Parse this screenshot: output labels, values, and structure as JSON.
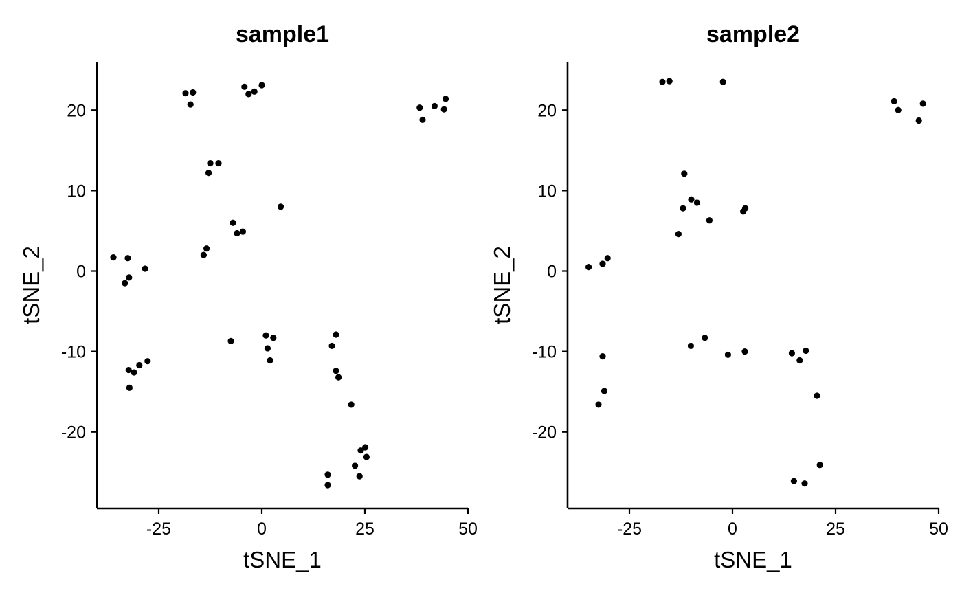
{
  "chart_data": [
    {
      "type": "scatter",
      "title": "sample1",
      "xlabel": "tSNE_1",
      "ylabel": "tSNE_2",
      "xlim": [
        -40,
        50
      ],
      "ylim": [
        -29.5,
        26
      ],
      "xticks": [
        -25,
        0,
        25,
        50
      ],
      "yticks": [
        -20,
        -10,
        0,
        10,
        20
      ],
      "grid": false,
      "color": "#000000",
      "points": [
        [
          -36,
          1.7
        ],
        [
          -32.5,
          1.6
        ],
        [
          -32.2,
          -0.8
        ],
        [
          -33.2,
          -1.5
        ],
        [
          -28.3,
          0.3
        ],
        [
          -32.3,
          -12.3
        ],
        [
          -31,
          -12.6
        ],
        [
          -29.7,
          -11.7
        ],
        [
          -27.7,
          -11.2
        ],
        [
          -32.1,
          -14.5
        ],
        [
          -18.5,
          22.1
        ],
        [
          -16.7,
          22.2
        ],
        [
          -17.3,
          20.7
        ],
        [
          -4.2,
          22.9
        ],
        [
          -3.2,
          22
        ],
        [
          -1.8,
          22.3
        ],
        [
          0,
          23.1
        ],
        [
          -12.5,
          13.4
        ],
        [
          -10.5,
          13.4
        ],
        [
          -12.9,
          12.2
        ],
        [
          -13.4,
          2.8
        ],
        [
          -14.1,
          2
        ],
        [
          -7,
          6
        ],
        [
          -6,
          4.7
        ],
        [
          -4.6,
          4.9
        ],
        [
          4.6,
          8
        ],
        [
          -7.5,
          -8.7
        ],
        [
          1,
          -8
        ],
        [
          2.8,
          -8.3
        ],
        [
          1.4,
          -9.6
        ],
        [
          2,
          -11.1
        ],
        [
          18,
          -7.9
        ],
        [
          17,
          -9.3
        ],
        [
          18,
          -12.4
        ],
        [
          18.6,
          -13.2
        ],
        [
          21.7,
          -16.6
        ],
        [
          25.1,
          -21.9
        ],
        [
          24,
          -22.3
        ],
        [
          25.4,
          -23.1
        ],
        [
          22.6,
          -24.2
        ],
        [
          23.7,
          -25.5
        ],
        [
          16,
          -25.3
        ],
        [
          16,
          -26.6
        ],
        [
          38.3,
          20.3
        ],
        [
          39,
          18.8
        ],
        [
          41.9,
          20.5
        ],
        [
          44.2,
          20.1
        ],
        [
          44.6,
          21.4
        ]
      ]
    },
    {
      "type": "scatter",
      "title": "sample2",
      "xlabel": "tSNE_1",
      "ylabel": "tSNE_2",
      "xlim": [
        -40,
        50
      ],
      "ylim": [
        -29.5,
        26
      ],
      "xticks": [
        -25,
        0,
        25,
        50
      ],
      "yticks": [
        -20,
        -10,
        0,
        10,
        20
      ],
      "grid": false,
      "color": "#000000",
      "points": [
        [
          -17,
          23.5
        ],
        [
          -15.3,
          23.6
        ],
        [
          -2.3,
          23.5
        ],
        [
          39.2,
          21.1
        ],
        [
          40.2,
          20
        ],
        [
          46.2,
          20.8
        ],
        [
          45.2,
          18.7
        ],
        [
          -11.7,
          12.1
        ],
        [
          -12,
          7.8
        ],
        [
          -10,
          8.9
        ],
        [
          -8.6,
          8.5
        ],
        [
          -13.1,
          4.6
        ],
        [
          -5.6,
          6.3
        ],
        [
          2.6,
          7.4
        ],
        [
          3.1,
          7.8
        ],
        [
          -34.9,
          0.5
        ],
        [
          -31.5,
          0.9
        ],
        [
          -30.3,
          1.6
        ],
        [
          -6.7,
          -8.3
        ],
        [
          -10.1,
          -9.3
        ],
        [
          -1.1,
          -10.4
        ],
        [
          3,
          -10
        ],
        [
          14.4,
          -10.2
        ],
        [
          16.3,
          -11.1
        ],
        [
          17.8,
          -9.9
        ],
        [
          -31.5,
          -10.6
        ],
        [
          -31.1,
          -14.9
        ],
        [
          -32.5,
          -16.6
        ],
        [
          20.5,
          -15.5
        ],
        [
          21.2,
          -24.1
        ],
        [
          14.9,
          -26.1
        ],
        [
          17.5,
          -26.4
        ]
      ]
    }
  ]
}
